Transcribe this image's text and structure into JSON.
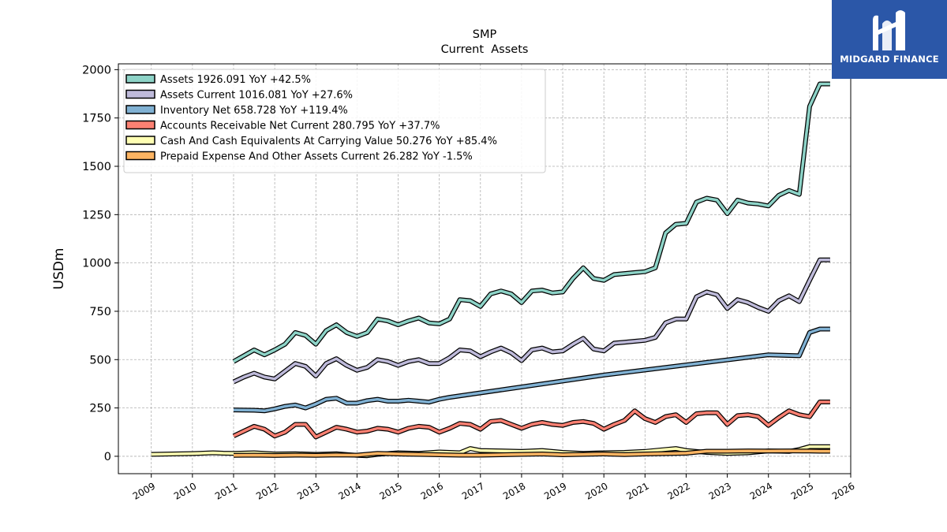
{
  "chart_data": {
    "type": "line",
    "title": "SMP",
    "subtitle": "Current  Assets",
    "ylabel": "USDm",
    "xlabel": "",
    "xlim": [
      2008.2,
      2026.0
    ],
    "ylim": [
      -90,
      2030
    ],
    "yticks": [
      0,
      250,
      500,
      750,
      1000,
      1250,
      1500,
      1750,
      2000
    ],
    "xticks": [
      2009,
      2010,
      2011,
      2012,
      2013,
      2014,
      2015,
      2016,
      2017,
      2018,
      2019,
      2020,
      2021,
      2022,
      2023,
      2024,
      2025,
      2026
    ],
    "grid": true,
    "legend_position": "top-left",
    "series": [
      {
        "name": "Assets  1926.091 YoY +42.5%",
        "color": "#8dd3c7",
        "x": [
          2011.0,
          2011.25,
          2011.5,
          2011.75,
          2012.0,
          2012.25,
          2012.5,
          2012.75,
          2013.0,
          2013.25,
          2013.5,
          2013.75,
          2014.0,
          2014.25,
          2014.5,
          2014.75,
          2015.0,
          2015.25,
          2015.5,
          2015.75,
          2016.0,
          2016.25,
          2016.5,
          2016.75,
          2017.0,
          2017.25,
          2017.5,
          2017.75,
          2018.0,
          2018.25,
          2018.5,
          2018.75,
          2019.0,
          2019.25,
          2019.5,
          2019.75,
          2020.0,
          2020.25,
          2020.5,
          2020.75,
          2021.0,
          2021.25,
          2021.5,
          2021.75,
          2022.0,
          2022.25,
          2022.5,
          2022.75,
          2023.0,
          2023.25,
          2023.5,
          2023.75,
          2024.0,
          2024.25,
          2024.5,
          2024.75,
          2025.0,
          2025.25,
          2025.5
        ],
        "y": [
          490,
          520,
          550,
          525,
          550,
          580,
          640,
          625,
          580,
          650,
          680,
          640,
          620,
          640,
          710,
          700,
          680,
          700,
          715,
          690,
          685,
          710,
          810,
          805,
          775,
          840,
          855,
          840,
          795,
          855,
          860,
          845,
          850,
          920,
          975,
          920,
          910,
          940,
          945,
          950,
          955,
          975,
          1155,
          1200,
          1205,
          1315,
          1335,
          1325,
          1255,
          1325,
          1310,
          1305,
          1295,
          1350,
          1375,
          1355,
          1810,
          1926,
          1926
        ]
      },
      {
        "name": "Assets Current  1016.081 YoY +27.6%",
        "color": "#bebada",
        "x": [
          2011.0,
          2011.25,
          2011.5,
          2011.75,
          2012.0,
          2012.25,
          2012.5,
          2012.75,
          2013.0,
          2013.25,
          2013.5,
          2013.75,
          2014.0,
          2014.25,
          2014.5,
          2014.75,
          2015.0,
          2015.25,
          2015.5,
          2015.75,
          2016.0,
          2016.25,
          2016.5,
          2016.75,
          2017.0,
          2017.25,
          2017.5,
          2017.75,
          2018.0,
          2018.25,
          2018.5,
          2018.75,
          2019.0,
          2019.25,
          2019.5,
          2019.75,
          2020.0,
          2020.25,
          2020.5,
          2020.75,
          2021.0,
          2021.25,
          2021.5,
          2021.75,
          2022.0,
          2022.25,
          2022.5,
          2022.75,
          2023.0,
          2023.25,
          2023.5,
          2023.75,
          2024.0,
          2024.25,
          2024.5,
          2024.75,
          2025.0,
          2025.25,
          2025.5
        ],
        "y": [
          385,
          410,
          430,
          410,
          400,
          440,
          480,
          465,
          415,
          480,
          505,
          470,
          445,
          460,
          500,
          490,
          470,
          490,
          500,
          480,
          480,
          510,
          550,
          545,
          515,
          540,
          560,
          535,
          495,
          550,
          560,
          540,
          545,
          580,
          610,
          555,
          545,
          585,
          590,
          595,
          600,
          615,
          690,
          710,
          710,
          825,
          850,
          835,
          765,
          810,
          795,
          770,
          750,
          805,
          830,
          800,
          910,
          1016,
          1016
        ]
      },
      {
        "name": "Inventory Net  658.728 YoY +119.4%",
        "color": "#80b1d3",
        "x": [
          2011.0,
          2011.5,
          2011.75,
          2012.0,
          2012.25,
          2012.5,
          2012.75,
          2013.0,
          2013.25,
          2013.5,
          2013.75,
          2014.0,
          2014.25,
          2014.5,
          2014.75,
          2015.0,
          2015.25,
          2015.5,
          2015.75,
          2016.0,
          2016.25,
          2020.0,
          2024.0,
          2024.75,
          2025.0,
          2025.25,
          2025.5
        ],
        "y": [
          240,
          238,
          235,
          245,
          258,
          265,
          250,
          270,
          295,
          300,
          275,
          275,
          288,
          295,
          285,
          285,
          290,
          285,
          280,
          295,
          305,
          420,
          525,
          520,
          640,
          658,
          658
        ]
      },
      {
        "name": "Accounts Receivable Net Current  280.795 YoY +37.7%",
        "color": "#fb8072",
        "x": [
          2011.0,
          2011.25,
          2011.5,
          2011.75,
          2012.0,
          2012.25,
          2012.5,
          2012.75,
          2013.0,
          2013.25,
          2013.5,
          2013.75,
          2014.0,
          2014.25,
          2014.5,
          2014.75,
          2015.0,
          2015.25,
          2015.5,
          2015.75,
          2016.0,
          2016.25,
          2016.5,
          2016.75,
          2017.0,
          2017.25,
          2017.5,
          2017.75,
          2018.0,
          2018.25,
          2018.5,
          2018.75,
          2019.0,
          2019.25,
          2019.5,
          2019.75,
          2020.0,
          2020.25,
          2020.5,
          2020.75,
          2021.0,
          2021.25,
          2021.5,
          2021.75,
          2022.0,
          2022.25,
          2022.5,
          2022.75,
          2023.0,
          2023.25,
          2023.5,
          2023.75,
          2024.0,
          2024.25,
          2024.5,
          2024.75,
          2025.0,
          2025.25,
          2025.5
        ],
        "y": [
          105,
          130,
          155,
          140,
          105,
          125,
          165,
          165,
          100,
          125,
          150,
          140,
          125,
          130,
          145,
          140,
          125,
          145,
          155,
          150,
          125,
          145,
          170,
          165,
          140,
          180,
          185,
          165,
          145,
          165,
          175,
          165,
          160,
          175,
          180,
          170,
          140,
          165,
          185,
          235,
          195,
          175,
          205,
          215,
          175,
          220,
          225,
          225,
          165,
          210,
          215,
          205,
          160,
          200,
          235,
          215,
          205,
          281,
          281
        ]
      },
      {
        "name": "Cash And Cash Equivalents At Carrying Value  50.276 YoY +85.4%",
        "color": "#ffffb3",
        "x": [
          2009.0,
          2009.5,
          2010.0,
          2010.5,
          2010.75,
          2011.0,
          2011.5,
          2012.0,
          2012.5,
          2013.0,
          2013.5,
          2014.0,
          2014.25,
          2014.5,
          2015.0,
          2015.5,
          2016.0,
          2016.5,
          2016.75,
          2017.0,
          2017.5,
          2018.0,
          2018.5,
          2019.0,
          2019.5,
          2020.0,
          2020.5,
          2021.0,
          2021.5,
          2021.75,
          2022.0,
          2022.5,
          2023.0,
          2023.5,
          2024.0,
          2024.5,
          2024.75,
          2025.0,
          2025.25,
          2025.5
        ],
        "y": [
          10,
          12,
          14,
          18,
          16,
          15,
          18,
          12,
          13,
          10,
          13,
          5,
          3,
          10,
          18,
          15,
          22,
          18,
          40,
          30,
          28,
          25,
          30,
          20,
          15,
          18,
          20,
          25,
          35,
          40,
          30,
          20,
          15,
          18,
          28,
          25,
          35,
          50,
          50,
          50
        ]
      },
      {
        "name": "Prepaid Expense And Other Assets Current  26.282 YoY -1.5%",
        "color": "#fdb462",
        "x": [
          2011.0,
          2011.5,
          2012.0,
          2012.5,
          2013.0,
          2013.5,
          2014.0,
          2014.5,
          2015.0,
          2015.5,
          2016.0,
          2016.5,
          2017.0,
          2017.5,
          2018.0,
          2018.5,
          2019.0,
          2019.5,
          2020.0,
          2020.5,
          2021.0,
          2021.5,
          2022.0,
          2022.5,
          2023.0,
          2023.5,
          2024.0,
          2024.5,
          2025.0,
          2025.25,
          2025.5
        ],
        "y": [
          5,
          6,
          4,
          6,
          5,
          7,
          6,
          15,
          12,
          10,
          8,
          6,
          6,
          8,
          10,
          12,
          8,
          10,
          12,
          9,
          12,
          14,
          16,
          26,
          26,
          28,
          27,
          28,
          27,
          26,
          26
        ]
      }
    ]
  }
}
